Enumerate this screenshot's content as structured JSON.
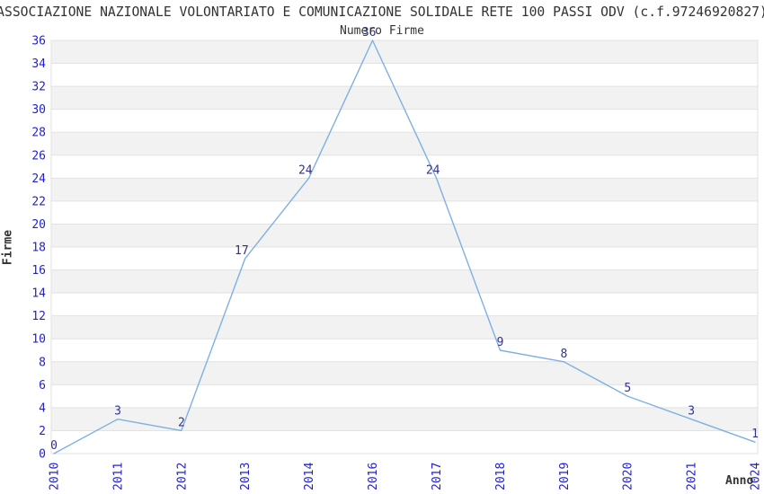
{
  "chart": {
    "title": "ASSOCIAZIONE NAZIONALE VOLONTARIATO E COMUNICAZIONE SOLIDALE RETE 100 PASSI ODV (c.f.97246920827)",
    "subtitle": "Numero Firme",
    "xlabel": "Anno",
    "ylabel": "Firme"
  },
  "chart_data": {
    "type": "line",
    "title": "Numero Firme",
    "xlabel": "Anno",
    "ylabel": "Firme",
    "categories": [
      "2010",
      "2011",
      "2012",
      "2013",
      "2014",
      "2016",
      "2017",
      "2018",
      "2019",
      "2020",
      "2021",
      "2024"
    ],
    "values": [
      0,
      3,
      2,
      17,
      24,
      36,
      24,
      9,
      8,
      5,
      3,
      1
    ],
    "ylim": [
      0,
      36
    ],
    "ytick_step": 2,
    "yticks": [
      0,
      2,
      4,
      6,
      8,
      10,
      12,
      14,
      16,
      18,
      20,
      22,
      24,
      26,
      28,
      30,
      32,
      34,
      36
    ],
    "grid": true,
    "legend": "none",
    "data_labels": true,
    "colors": {
      "line": "#7EB0E4",
      "axis_tick_label": "#2222CC",
      "data_label": "#333388",
      "band": "#F2F2F2",
      "grid": "#E2E2E2",
      "text": "#333333",
      "background": "#FFFFFF"
    }
  }
}
